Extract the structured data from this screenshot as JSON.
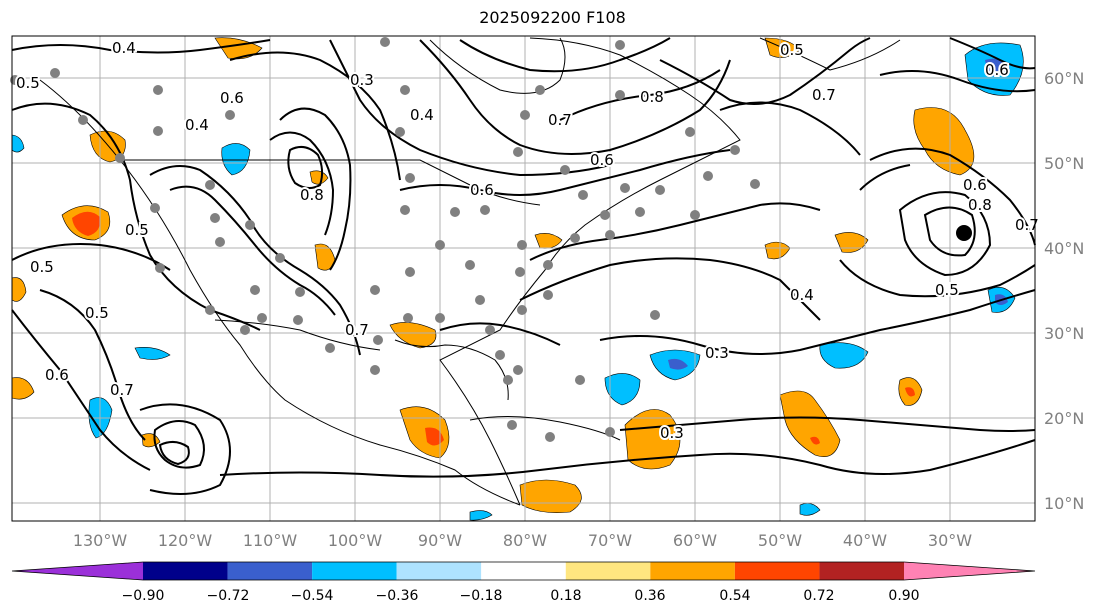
{
  "title": "2025092200 F108",
  "lon_labels": [
    "130°W",
    "120°W",
    "110°W",
    "100°W",
    "90°W",
    "80°W",
    "70°W",
    "60°W",
    "50°W",
    "40°W",
    "30°W"
  ],
  "lat_labels": [
    "60°N",
    "50°N",
    "40°N",
    "30°N",
    "20°N",
    "10°N"
  ],
  "colorbar": {
    "ticks": [
      "−0.90",
      "−0.72",
      "−0.54",
      "−0.36",
      "−0.18",
      "0.18",
      "0.36",
      "0.54",
      "0.72",
      "0.90"
    ],
    "colors": [
      "#9b30d9",
      "#00008b",
      "#3a5fcd",
      "#00bfff",
      "#aee3ff",
      "#ffffff",
      "#ffe680",
      "#ffa500",
      "#ff4500",
      "#b22222",
      "#ff82b4"
    ]
  },
  "contour_labels": [
    "0.4",
    "0.5",
    "0.6",
    "0.3",
    "0.6",
    "0.8",
    "0.7",
    "0.4",
    "0.7",
    "0.6",
    "0.6",
    "0.8",
    "0.7",
    "0.5",
    "0.8",
    "0.4",
    "0.6",
    "0.5",
    "0.7",
    "0.3",
    "0.5",
    "0.5",
    "0.6",
    "0.3",
    "0.7",
    "0.4",
    "0.5"
  ],
  "legend": {}
}
